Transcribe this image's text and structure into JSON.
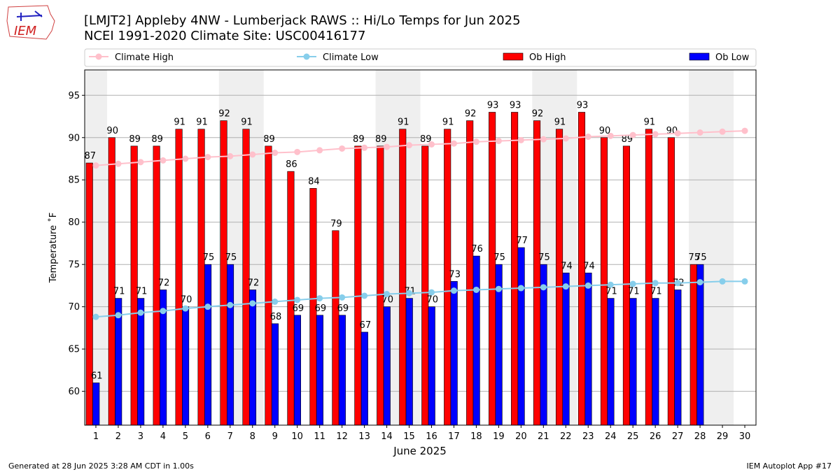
{
  "chart_data": {
    "type": "bar",
    "title": "[LMJT2] Appleby 4NW - Lumberjack RAWS :: Hi/Lo Temps for Jun 2025",
    "subtitle": "NCEI 1991-2020 Climate Site: USC00416177",
    "logo_text": "IEM",
    "xlabel": "June 2025",
    "ylabel": "Temperature ˚F",
    "footer_left": "Generated at 28 Jun 2025 3:28 AM CDT in 1.00s",
    "footer_right": "IEM Autoplot App #17",
    "categories": [
      "1",
      "2",
      "3",
      "4",
      "5",
      "6",
      "7",
      "8",
      "9",
      "10",
      "11",
      "12",
      "13",
      "14",
      "15",
      "16",
      "17",
      "18",
      "19",
      "20",
      "21",
      "22",
      "23",
      "24",
      "25",
      "26",
      "27",
      "28",
      "29",
      "30"
    ],
    "ylim": [
      56,
      98
    ],
    "yticks": [
      60,
      65,
      70,
      75,
      80,
      85,
      90,
      95
    ],
    "grid": true,
    "series": [
      {
        "name": "Climate High",
        "kind": "line",
        "color": "#ffc0cb",
        "values": [
          86.7,
          86.9,
          87.1,
          87.3,
          87.5,
          87.7,
          87.8,
          88.0,
          88.2,
          88.3,
          88.5,
          88.7,
          88.8,
          88.9,
          89.1,
          89.2,
          89.3,
          89.5,
          89.6,
          89.7,
          89.8,
          89.9,
          90.1,
          90.2,
          90.3,
          90.4,
          90.5,
          90.6,
          90.7,
          90.8
        ]
      },
      {
        "name": "Climate Low",
        "kind": "line",
        "color": "#87ceeb",
        "values": [
          68.8,
          69.0,
          69.3,
          69.5,
          69.8,
          70.0,
          70.2,
          70.4,
          70.6,
          70.8,
          71.0,
          71.1,
          71.3,
          71.5,
          71.6,
          71.7,
          71.9,
          72.0,
          72.1,
          72.2,
          72.3,
          72.4,
          72.5,
          72.6,
          72.7,
          72.8,
          72.8,
          72.9,
          73.0,
          73.0
        ]
      },
      {
        "name": "Ob High",
        "kind": "bar",
        "color": "#ff0000",
        "values": [
          87,
          90,
          89,
          89,
          91,
          91,
          92,
          91,
          89,
          86,
          84,
          79,
          89,
          89,
          91,
          89,
          91,
          92,
          93,
          93,
          92,
          91,
          93,
          90,
          89,
          91,
          90,
          75,
          null,
          null
        ]
      },
      {
        "name": "Ob Low",
        "kind": "bar",
        "color": "#0000ff",
        "values": [
          61,
          71,
          71,
          72,
          70,
          75,
          75,
          72,
          68,
          69,
          69,
          69,
          67,
          70,
          71,
          70,
          73,
          76,
          75,
          77,
          75,
          74,
          74,
          71,
          71,
          71,
          72,
          75,
          null,
          null
        ]
      }
    ]
  }
}
